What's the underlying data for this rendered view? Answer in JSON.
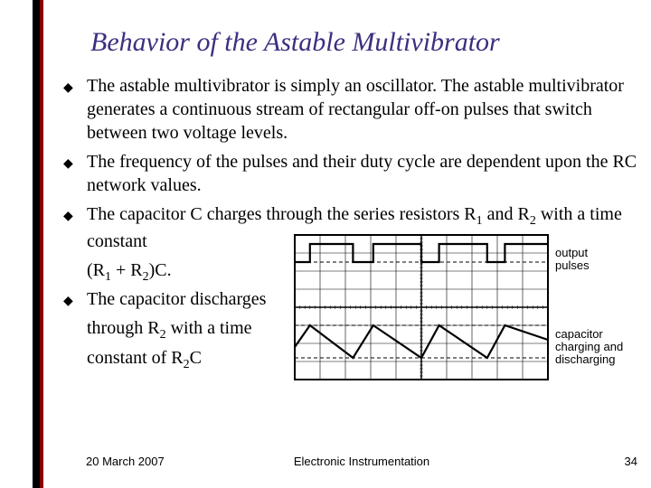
{
  "title": "Behavior of the Astable Multivibrator",
  "bullets": {
    "b1": "The astable multivibrator is simply an oscillator. The astable multivibrator generates a continuous stream of rectangular off-on pulses that switch between two voltage levels.",
    "b2": "The frequency of the pulses and their duty cycle are dependent upon the RC network values.",
    "b3_part1": "The capacitor C charges through the series resistors R",
    "b3_part2": " and R",
    "b3_part3": " with a time constant",
    "b3_line2_a": "(R",
    "b3_line2_b": " + R",
    "b3_line2_c": ")C.",
    "b4_part1": "The capacitor discharges",
    "b4_line2_a": "through R",
    "b4_line2_b": " with a time",
    "b4_line3_a": " constant of R",
    "b4_line3_b": "C"
  },
  "sub1": "1",
  "sub2": "2",
  "footer": {
    "date": "20 March 2007",
    "center": "Electronic Instrumentation",
    "page": "34"
  },
  "diagram": {
    "label_top": "output\npulses",
    "label_bottom": "capacitor\ncharging and\ndischarging",
    "grid_color": "#000000",
    "line_color": "#000000",
    "bg_color": "#ffffff",
    "dashed_color": "#000000",
    "grid_rows": 8,
    "grid_cols": 10,
    "pulse_high": 0.5,
    "pulse_low": 1.5,
    "transitions": [
      0.6,
      2.3,
      3.1,
      5.0,
      5.7,
      7.6,
      8.3
    ],
    "cap_peaks_x": [
      0.6,
      3.1,
      5.7,
      8.3
    ],
    "cap_valleys_x": [
      2.3,
      5.0,
      7.6
    ],
    "cap_peak_y": 5.0,
    "cap_valley_y": 6.8,
    "cap_start_y": 6.2
  }
}
